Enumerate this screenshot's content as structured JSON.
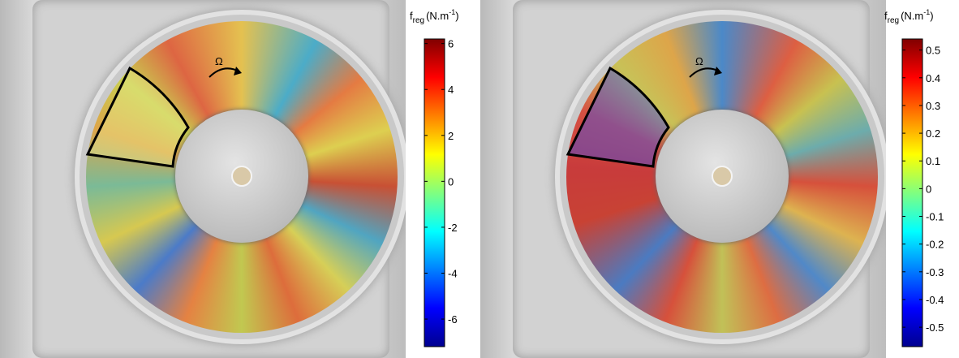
{
  "panels": [
    {
      "annotation": "Ω",
      "colorbar": {
        "symbol": "f",
        "subscript": "reg",
        "unit": "(N.m",
        "exponent": "-1",
        "close": ")",
        "lim": [
          -7.2,
          6.2
        ],
        "ticks": [
          6,
          4,
          2,
          0,
          -2,
          -4,
          -6
        ]
      }
    },
    {
      "annotation": "Ω",
      "colorbar": {
        "symbol": "f",
        "subscript": "reg",
        "unit": "(N.m",
        "exponent": "-1",
        "close": ")",
        "lim": [
          -0.57,
          0.54
        ],
        "ticks": [
          0.5,
          0.4,
          0.3,
          0.2,
          0.1,
          0,
          -0.1,
          -0.2,
          -0.3,
          -0.4,
          -0.5
        ]
      }
    }
  ]
}
